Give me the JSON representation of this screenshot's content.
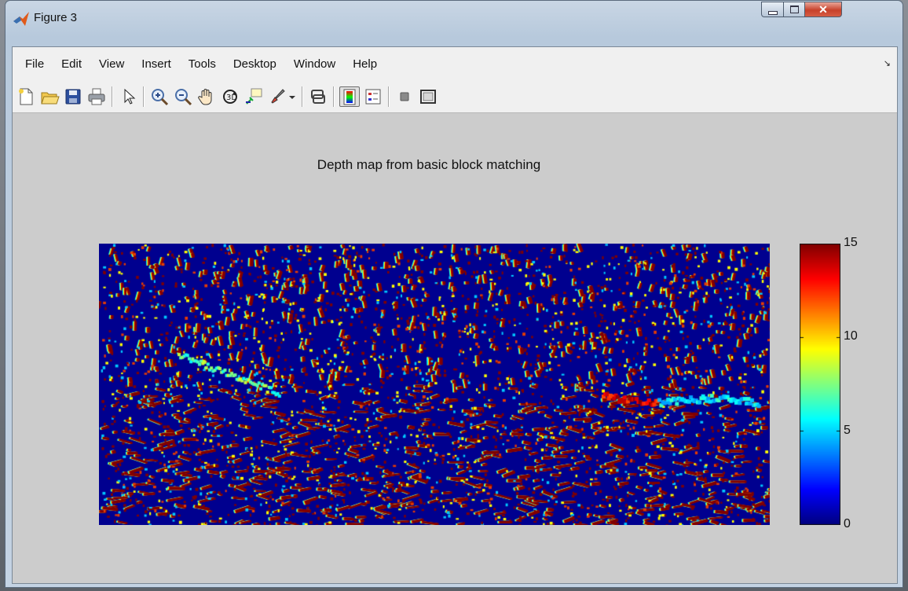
{
  "window": {
    "title": "Figure 3"
  },
  "menu": [
    "File",
    "Edit",
    "View",
    "Insert",
    "Tools",
    "Desktop",
    "Window",
    "Help"
  ],
  "toolbar": {
    "icons": [
      "new-figure-icon",
      "open-file-icon",
      "save-icon",
      "print-icon",
      "edit-plot-arrow-icon",
      "zoom-in-icon",
      "zoom-out-icon",
      "pan-hand-icon",
      "rotate-3d-icon",
      "data-cursor-icon",
      "brush-icon",
      "link-plot-icon",
      "insert-colorbar-icon",
      "insert-legend-icon",
      "hide-plot-tools-icon",
      "show-plot-tools-icon"
    ]
  },
  "chart_data": {
    "type": "heatmap",
    "title": "Depth map from basic block matching",
    "colormap": "jet",
    "clim": [
      0,
      15
    ],
    "colorbar_ticks": [
      "0",
      "5",
      "10",
      "15"
    ],
    "colors": {
      "low": "#00008f",
      "high": "#800000",
      "background": "#cccccc"
    }
  }
}
